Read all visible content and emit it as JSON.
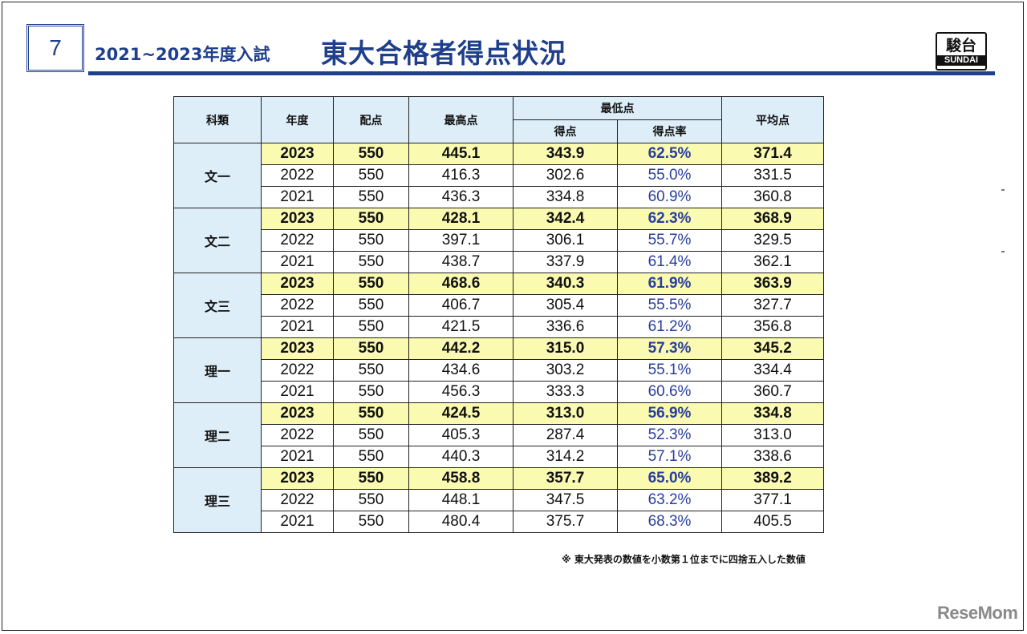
{
  "slide": {
    "page_number": "7",
    "subtitle": "2021~2023年度入試",
    "title": "東大合格者得点状況",
    "logo_kanji": "駿台",
    "logo_roman": "SUNDAI"
  },
  "table": {
    "headers": {
      "subject": "科類",
      "year": "年度",
      "full_marks": "配点",
      "highest": "最高点",
      "lowest_group": "最低点",
      "lowest_score": "得点",
      "lowest_rate": "得点率",
      "average": "平均点"
    },
    "groups": [
      {
        "subject": "文一",
        "rows": [
          {
            "year": "2023",
            "full_marks": "550",
            "highest": "445.1",
            "lowest": "343.9",
            "rate": "62.5%",
            "average": "371.4"
          },
          {
            "year": "2022",
            "full_marks": "550",
            "highest": "416.3",
            "lowest": "302.6",
            "rate": "55.0%",
            "average": "331.5"
          },
          {
            "year": "2021",
            "full_marks": "550",
            "highest": "436.3",
            "lowest": "334.8",
            "rate": "60.9%",
            "average": "360.8"
          }
        ]
      },
      {
        "subject": "文二",
        "rows": [
          {
            "year": "2023",
            "full_marks": "550",
            "highest": "428.1",
            "lowest": "342.4",
            "rate": "62.3%",
            "average": "368.9"
          },
          {
            "year": "2022",
            "full_marks": "550",
            "highest": "397.1",
            "lowest": "306.1",
            "rate": "55.7%",
            "average": "329.5"
          },
          {
            "year": "2021",
            "full_marks": "550",
            "highest": "438.7",
            "lowest": "337.9",
            "rate": "61.4%",
            "average": "362.1"
          }
        ]
      },
      {
        "subject": "文三",
        "rows": [
          {
            "year": "2023",
            "full_marks": "550",
            "highest": "468.6",
            "lowest": "340.3",
            "rate": "61.9%",
            "average": "363.9"
          },
          {
            "year": "2022",
            "full_marks": "550",
            "highest": "406.7",
            "lowest": "305.4",
            "rate": "55.5%",
            "average": "327.7"
          },
          {
            "year": "2021",
            "full_marks": "550",
            "highest": "421.5",
            "lowest": "336.6",
            "rate": "61.2%",
            "average": "356.8"
          }
        ]
      },
      {
        "subject": "理一",
        "rows": [
          {
            "year": "2023",
            "full_marks": "550",
            "highest": "442.2",
            "lowest": "315.0",
            "rate": "57.3%",
            "average": "345.2"
          },
          {
            "year": "2022",
            "full_marks": "550",
            "highest": "434.6",
            "lowest": "303.2",
            "rate": "55.1%",
            "average": "334.4"
          },
          {
            "year": "2021",
            "full_marks": "550",
            "highest": "456.3",
            "lowest": "333.3",
            "rate": "60.6%",
            "average": "360.7"
          }
        ]
      },
      {
        "subject": "理二",
        "rows": [
          {
            "year": "2023",
            "full_marks": "550",
            "highest": "424.5",
            "lowest": "313.0",
            "rate": "56.9%",
            "average": "334.8"
          },
          {
            "year": "2022",
            "full_marks": "550",
            "highest": "405.3",
            "lowest": "287.4",
            "rate": "52.3%",
            "average": "313.0"
          },
          {
            "year": "2021",
            "full_marks": "550",
            "highest": "440.3",
            "lowest": "314.2",
            "rate": "57.1%",
            "average": "338.6"
          }
        ]
      },
      {
        "subject": "理三",
        "rows": [
          {
            "year": "2023",
            "full_marks": "550",
            "highest": "458.8",
            "lowest": "357.7",
            "rate": "65.0%",
            "average": "389.2"
          },
          {
            "year": "2022",
            "full_marks": "550",
            "highest": "448.1",
            "lowest": "347.5",
            "rate": "63.2%",
            "average": "377.1"
          },
          {
            "year": "2021",
            "full_marks": "550",
            "highest": "480.4",
            "lowest": "375.7",
            "rate": "68.3%",
            "average": "405.5"
          }
        ]
      }
    ]
  },
  "note": "※ 東大発表の数値を小数第１位までに四捨五入した数値",
  "watermark": "ReseMom",
  "colors": {
    "brand_navy": "#1f3f8c",
    "header_bg": "#ddeef8",
    "highlight_row": "#fafab0",
    "rate_text": "#2a3f9c"
  }
}
